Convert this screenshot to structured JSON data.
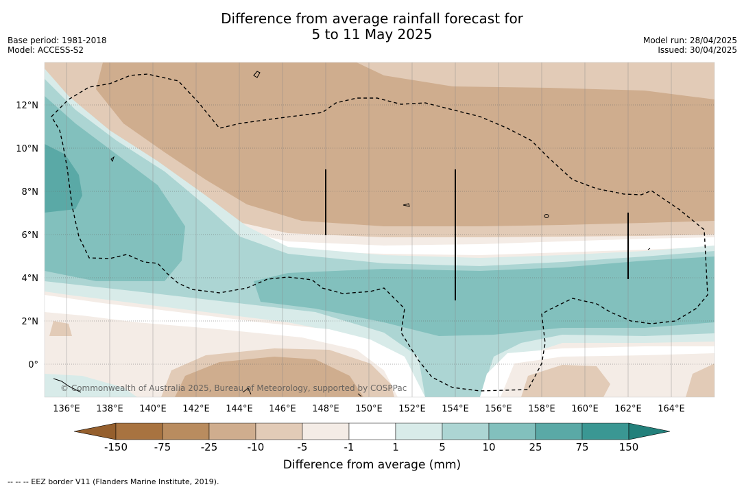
{
  "title_line1": "Difference from average rainfall forecast for",
  "title_line2": "5 to 11 May 2025",
  "base_period": "Base period: 1981-2018",
  "model": "Model: ACCESS-S2",
  "model_run": "Model run: 28/04/2025",
  "issued": "Issued: 30/04/2025",
  "lat_labels": [
    "12°N",
    "10°N",
    "8°N",
    "6°N",
    "4°N",
    "2°N",
    "0°"
  ],
  "lon_labels": [
    "136°E",
    "138°E",
    "140°E",
    "142°E",
    "144°E",
    "146°E",
    "148°E",
    "150°E",
    "152°E",
    "154°E",
    "156°E",
    "158°E",
    "160°E",
    "162°E",
    "164°E"
  ],
  "copyright": "© Commonwealth of Australia 2025, Bureau of Meteorology, supported by COSPPac",
  "colorbar": {
    "labels": [
      "-150",
      "-75",
      "-25",
      "-10",
      "-5",
      "-1",
      "1",
      "5",
      "10",
      "25",
      "75",
      "150"
    ],
    "colors": [
      "#a87340",
      "#b98c5f",
      "#cfad8e",
      "#e2cbb7",
      "#f4ece6",
      "#ffffff",
      "#d8ebe9",
      "#acd5d3",
      "#82c0bd",
      "#5aa9a6",
      "#3a9793"
    ],
    "extend_low_color": "#955f2d",
    "extend_high_color": "#23807b",
    "title": "Difference from average (mm)"
  },
  "eez_note": "-- -- -- EEZ border V11 (Flanders Marine Institute, 2019)."
}
